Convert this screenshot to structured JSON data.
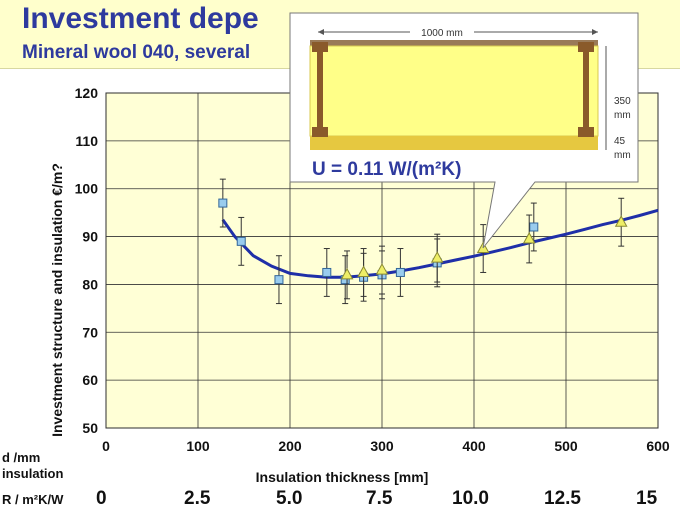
{
  "header": {
    "title": "Investment depe",
    "subtitle": "Mineral wool 040, several"
  },
  "colors": {
    "header_bg": "#ffffcc",
    "title": "#2e3a9e",
    "plot_bg": "#ffffd6",
    "curve": "#1f2fa8",
    "square_marker": "#99ccee",
    "triangle_marker": "#eeee66"
  },
  "side_labels": {
    "d_label": "d /mm",
    "insulation_label": "insulation",
    "r_label": "R / m²K/W"
  },
  "r_values": [
    "0",
    "2.5",
    "5.0",
    "7.5",
    "10.0",
    "12.5",
    "15"
  ],
  "callout": {
    "width_label": "1000 mm",
    "dim1": "350",
    "dim1_unit": "mm",
    "dim2": "45",
    "dim2_unit": "mm",
    "u_value": "U = 0.11 W/(m²K)"
  },
  "chart_data": {
    "type": "scatter",
    "xlabel": "Insulation thickness   [mm]",
    "ylabel": "Investment structure and insulation  €/m?",
    "xlim": [
      0,
      600
    ],
    "ylim": [
      50,
      120
    ],
    "xticks": [
      0,
      100,
      200,
      300,
      400,
      500,
      600
    ],
    "yticks": [
      50,
      60,
      70,
      80,
      90,
      100,
      110,
      120
    ],
    "grid": true,
    "series": [
      {
        "marker": "square",
        "points": [
          {
            "x": 127,
            "y": 97,
            "err": 5
          },
          {
            "x": 147,
            "y": 89,
            "err": 5
          },
          {
            "x": 188,
            "y": 81,
            "err": 5
          },
          {
            "x": 240,
            "y": 82.5,
            "err": 5
          },
          {
            "x": 260,
            "y": 81,
            "err": 5
          },
          {
            "x": 280,
            "y": 81.5,
            "err": 5
          },
          {
            "x": 300,
            "y": 82,
            "err": 5
          },
          {
            "x": 320,
            "y": 82.5,
            "err": 5
          },
          {
            "x": 360,
            "y": 84.5,
            "err": 5
          },
          {
            "x": 465,
            "y": 92,
            "err": 5
          }
        ]
      },
      {
        "marker": "triangle",
        "points": [
          {
            "x": 262,
            "y": 82,
            "err": 5
          },
          {
            "x": 280,
            "y": 82.5,
            "err": 5
          },
          {
            "x": 300,
            "y": 83,
            "err": 5
          },
          {
            "x": 360,
            "y": 85.5,
            "err": 5
          },
          {
            "x": 410,
            "y": 87.5,
            "err": 5
          },
          {
            "x": 460,
            "y": 89.5,
            "err": 5
          },
          {
            "x": 560,
            "y": 93,
            "err": 5
          }
        ]
      },
      {
        "type": "line",
        "points": [
          [
            127,
            93.5
          ],
          [
            140,
            90
          ],
          [
            160,
            86
          ],
          [
            180,
            83.8
          ],
          [
            200,
            82.3
          ],
          [
            220,
            81.8
          ],
          [
            240,
            81.5
          ],
          [
            260,
            81.5
          ],
          [
            280,
            81.8
          ],
          [
            300,
            82.2
          ],
          [
            320,
            82.8
          ],
          [
            340,
            83.5
          ],
          [
            360,
            84.3
          ],
          [
            380,
            85.1
          ],
          [
            400,
            85.9
          ],
          [
            420,
            86.8
          ],
          [
            440,
            87.7
          ],
          [
            460,
            88.7
          ],
          [
            480,
            89.6
          ],
          [
            500,
            90.5
          ],
          [
            520,
            91.5
          ],
          [
            540,
            92.5
          ],
          [
            560,
            93.4
          ],
          [
            580,
            94.4
          ],
          [
            600,
            95.5
          ]
        ]
      }
    ]
  }
}
